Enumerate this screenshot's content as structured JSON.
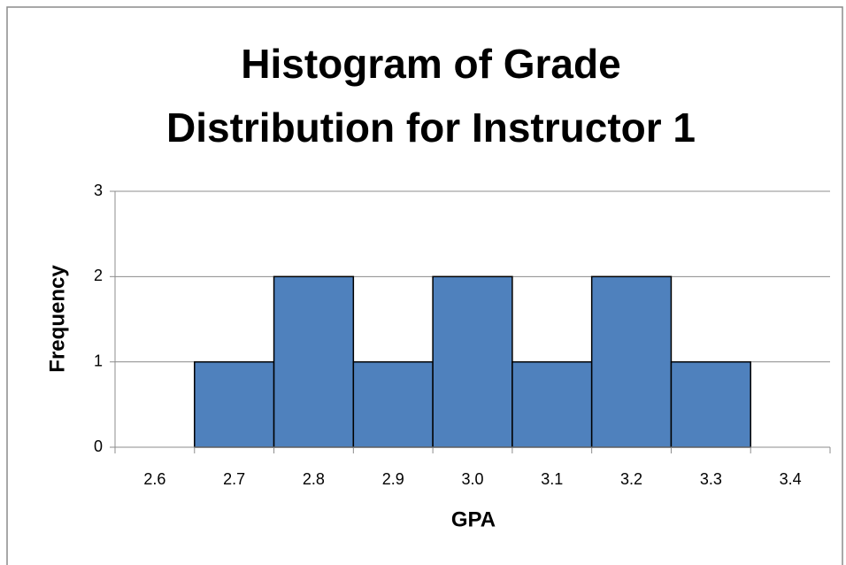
{
  "chart_data": {
    "type": "bar",
    "title": [
      "Histogram of Grade",
      "Distribution for Instructor 1"
    ],
    "x_label": "GPA",
    "y_label": "Frequency",
    "categories": [
      "2.6",
      "2.7",
      "2.8",
      "2.9",
      "3.0",
      "3.1",
      "3.2",
      "3.3",
      "3.4"
    ],
    "values": [
      0,
      1,
      2,
      1,
      2,
      1,
      2,
      1,
      0
    ],
    "color": "#4f81bd",
    "ylim": [
      0,
      3
    ],
    "yticks": [
      0,
      1,
      2,
      3
    ],
    "grid": true
  }
}
